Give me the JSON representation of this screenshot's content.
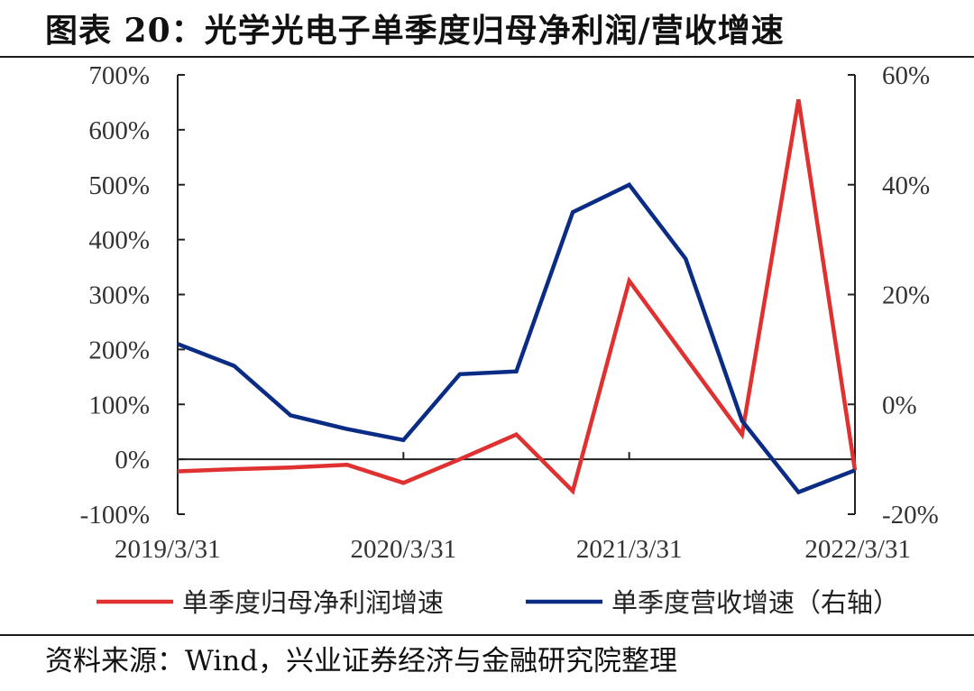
{
  "title": "图表 20：光学光电子单季度归母净利润/营收增速",
  "source": "资料来源：Wind，兴业证券经济与金融研究院整理",
  "chart_data": {
    "type": "line",
    "title": "图表 20：光学光电子单季度归母净利润/营收增速",
    "x": [
      "2019/3/31",
      "2019/6/30",
      "2019/9/30",
      "2019/12/31",
      "2020/3/31",
      "2020/6/30",
      "2020/9/30",
      "2020/12/31",
      "2021/3/31",
      "2021/6/30",
      "2021/9/30",
      "2021/12/31",
      "2022/3/31"
    ],
    "x_tick_labels": [
      "2019/3/31",
      "2020/3/31",
      "2021/3/31",
      "2022/3/31"
    ],
    "left_axis": {
      "range": [
        -100,
        700
      ],
      "ticks": [
        "700%",
        "600%",
        "500%",
        "400%",
        "300%",
        "200%",
        "100%",
        "0%",
        "-100%"
      ]
    },
    "right_axis": {
      "range": [
        -20,
        60
      ],
      "ticks": [
        "60%",
        "40%",
        "20%",
        "0%",
        "-20%"
      ]
    },
    "series": [
      {
        "name": "单季度归母净利润增速",
        "axis": "left",
        "color": "#e03131",
        "values": [
          -22,
          -18,
          -15,
          -10,
          -43,
          0,
          45,
          -58,
          325,
          185,
          45,
          655,
          -20
        ]
      },
      {
        "name": "单季度营收增速（右轴）",
        "axis": "right",
        "color": "#0b2c84",
        "values": [
          11,
          7,
          -2,
          -4.5,
          -6.5,
          5.5,
          6,
          35,
          40,
          26.5,
          -3,
          -16,
          -12
        ]
      }
    ],
    "legend": "bottom",
    "grid": false
  }
}
